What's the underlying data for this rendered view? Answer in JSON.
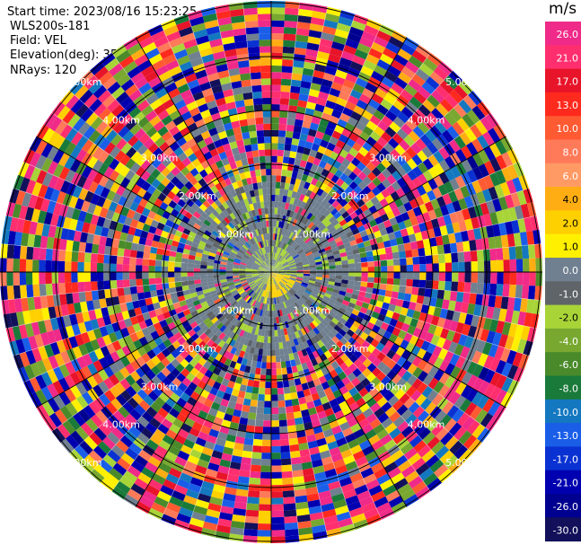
{
  "header": {
    "start_time": "Start time: 2023/08/16 15:23:25",
    "instrument": "WLS200s-181",
    "field": "Field: VEL",
    "elevation": "Elevation(deg): 35.30",
    "nrays": "NRays: 120"
  },
  "colorbar": {
    "unit": "m/s",
    "ticks": [
      "26.0",
      "21.0",
      "17.0",
      "13.0",
      "10.0",
      "8.0",
      "6.0",
      "4.0",
      "2.0",
      "1.0",
      "0.0",
      "-1.0",
      "-2.0",
      "-4.0",
      "-6.0",
      "-8.0",
      "-10.0",
      "-13.0",
      "-17.0",
      "-21.0",
      "-26.0",
      "-30.0"
    ],
    "colors": [
      "#f02a88",
      "#ff2f6f",
      "#e8142a",
      "#ff2a1e",
      "#ff5a32",
      "#ff7a59",
      "#ff9a64",
      "#ffad12",
      "#ffd000",
      "#fff000",
      "#708090",
      "#5f6469",
      "#a8d438",
      "#78a830",
      "#4a8a2a",
      "#1a7a3a",
      "#1478c0",
      "#1a5ee8",
      "#0a32d2",
      "#0000b0",
      "#000090",
      "#12105a"
    ]
  },
  "chart_data": {
    "type": "polar-ppi",
    "field": "VEL",
    "unit": "m/s",
    "elevation_deg": 35.3,
    "n_rays": 120,
    "range_rings_km": [
      1.0,
      2.0,
      3.0,
      4.0,
      5.0
    ],
    "range_labels": [
      "1.00km",
      "2.00km",
      "3.00km",
      "4.00km",
      "5.00km"
    ],
    "center_velocity_note": "near-zero velocities (grey/olive) near center; yellow 2.0-4.0 m/s region just south-east of center"
  }
}
